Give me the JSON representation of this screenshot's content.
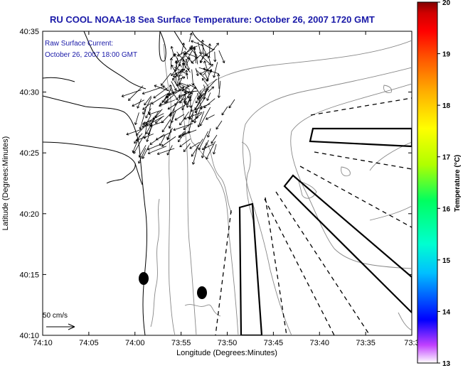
{
  "title": "RU COOL  NOAA-18  Sea Surface Temperature:  October 26, 2007 1720 GMT",
  "annotation": {
    "line1": "Raw Surface Current:",
    "line2": "October 26, 2007 18:00 GMT"
  },
  "scale_label": "50 cm/s",
  "x_axis": {
    "label": "Longitude (Degrees:Minutes)",
    "ticks": [
      "74:10",
      "74:05",
      "74:00",
      "73:55",
      "73:50",
      "73:45",
      "73:40",
      "73:35",
      "73:3"
    ]
  },
  "y_axis": {
    "label": "Latitude (Degrees:Minutes)",
    "ticks": [
      "40:35",
      "40:30",
      "40:25",
      "40:20",
      "40:15",
      "40:10"
    ]
  },
  "colorbar": {
    "label": "Temperature (°C)",
    "ticks": [
      "20",
      "19",
      "18",
      "17",
      "16",
      "15",
      "14",
      "13"
    ],
    "range": [
      13,
      20
    ],
    "colors": [
      "#ffffff",
      "#c040ff",
      "#0000ff",
      "#00c0ff",
      "#00ffd0",
      "#00ff60",
      "#b0ff00",
      "#ffff00",
      "#ffb000",
      "#ff5000",
      "#ff0000",
      "#d00000",
      "#800000"
    ]
  },
  "chart_data": {
    "type": "map",
    "xlim": [
      "74:10",
      "73:30"
    ],
    "ylim": [
      "40:10",
      "40:35"
    ],
    "markers": [
      {
        "lon": "73:58.8",
        "lat": "40:14.6"
      },
      {
        "lon": "73:52.1",
        "lat": "40:13.6"
      }
    ]
  }
}
